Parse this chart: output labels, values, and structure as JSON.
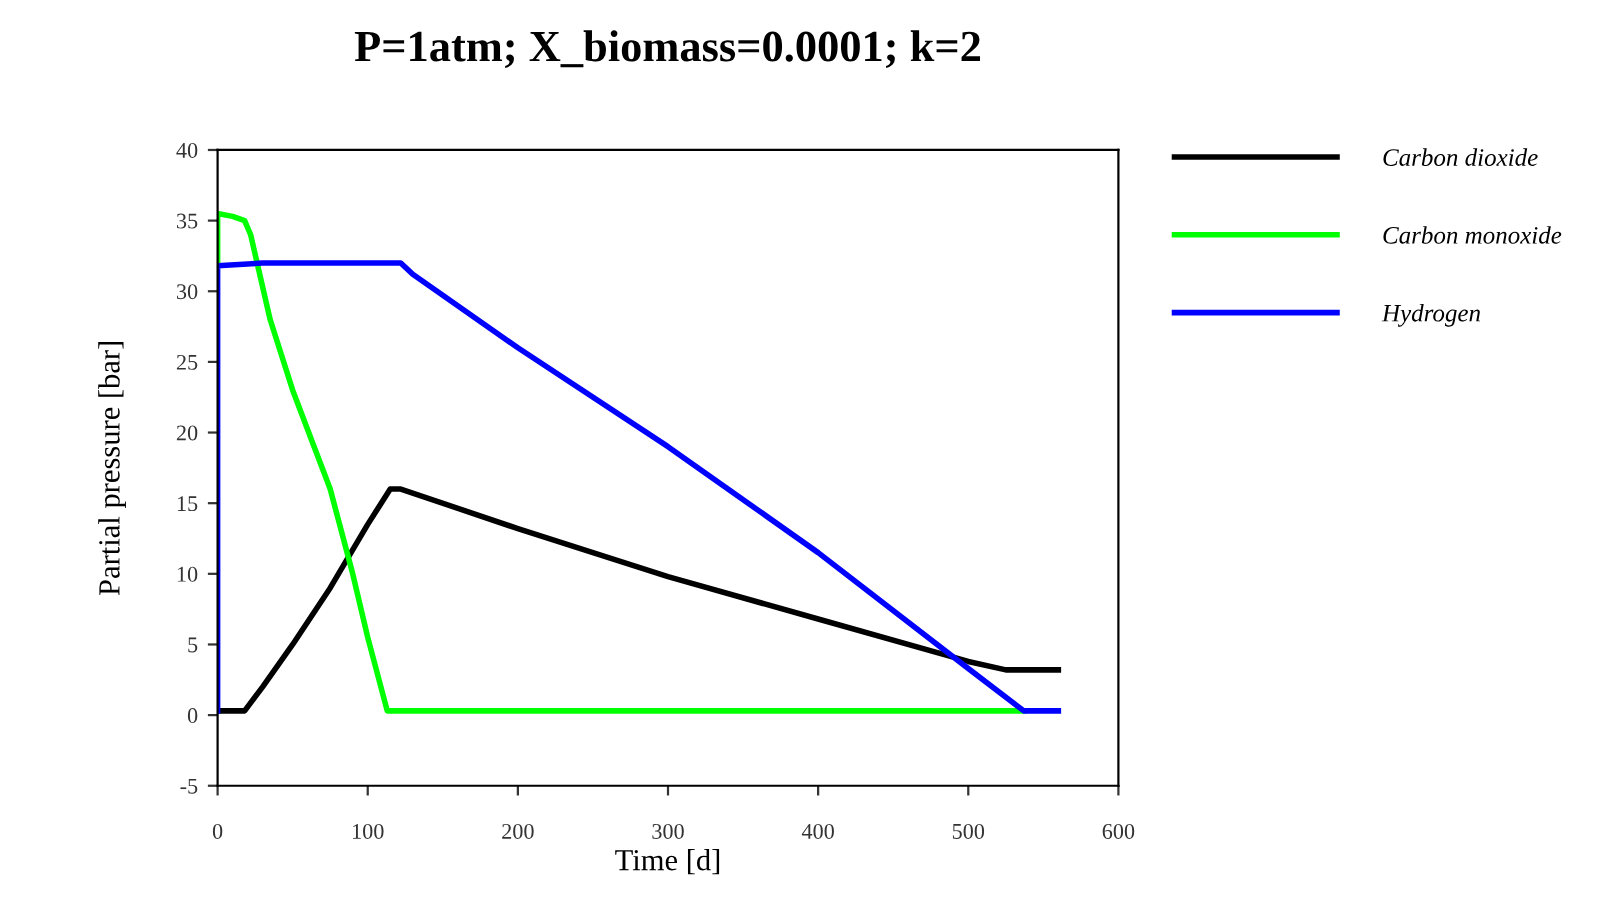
{
  "chart_data": {
    "type": "line",
    "title": "P=1atm; X_biomass=0.0001; k=2",
    "xlabel": "Time [d]",
    "ylabel": "Partial pressure [bar]",
    "xlim": [
      0,
      600
    ],
    "xticks": [
      0,
      100,
      200,
      300,
      400,
      500,
      600
    ],
    "ylim": [
      -5,
      40
    ],
    "yticks": [
      -5,
      0,
      5,
      10,
      15,
      20,
      25,
      30,
      35,
      40
    ],
    "grid": false,
    "legend": "right",
    "line_style": "solid",
    "marker": "none",
    "series": [
      {
        "name": "Carbon dioxide",
        "color": "#000000",
        "x": [
          0,
          18,
          30,
          50,
          75,
          100,
          115,
          122,
          200,
          300,
          400,
          500,
          525,
          560
        ],
        "values": [
          0.3,
          0.3,
          2,
          5,
          9,
          13.5,
          16,
          16,
          13.2,
          9.8,
          6.8,
          3.8,
          3.2,
          3.2
        ]
      },
      {
        "name": "Carbon monoxide",
        "color": "#00ff00",
        "x": [
          0,
          0,
          10,
          18,
          22,
          35,
          50,
          75,
          90,
          100,
          113,
          537
        ],
        "values": [
          32,
          35.5,
          35.3,
          35,
          34,
          28,
          23,
          16,
          10,
          5.5,
          0.3,
          0.3
        ]
      },
      {
        "name": "Hydrogen",
        "color": "#0000ff",
        "x": [
          0,
          0,
          30,
          122,
          130,
          200,
          300,
          400,
          500,
          537,
          560
        ],
        "values": [
          0.3,
          31.8,
          32,
          32,
          31.2,
          26,
          19,
          11.5,
          3.3,
          0.3,
          0.3
        ]
      }
    ]
  }
}
